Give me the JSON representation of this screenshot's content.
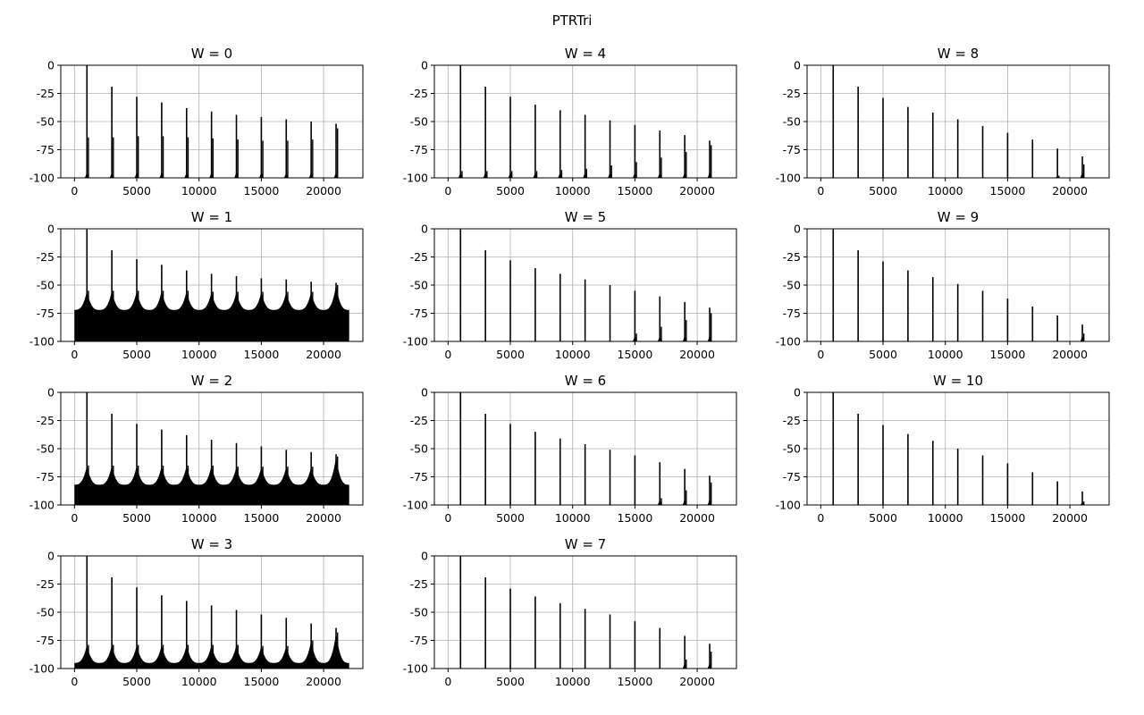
{
  "figure": {
    "suptitle": "PTRTri"
  },
  "chart_data": [
    {
      "type": "bar",
      "title": "W = 0",
      "xlim": [
        -1100,
        23150
      ],
      "ylim": [
        -100,
        0
      ],
      "xticks": [
        0,
        5000,
        10000,
        15000,
        20000
      ],
      "yticks": [
        0,
        -25,
        -50,
        -75,
        -100
      ],
      "grid": true,
      "fundamental": 1000,
      "peaks": [
        0,
        -19,
        -28,
        -33,
        -38,
        -41,
        -44,
        -46,
        -48,
        -50,
        -52
      ],
      "secondary_peaks": [
        -64,
        -64,
        -63,
        -63,
        -64,
        -65,
        -66,
        -67,
        -67,
        -66,
        -56
      ],
      "floor": -100,
      "color": "#000000"
    },
    {
      "type": "bar",
      "title": "W = 1",
      "xlim": [
        -1100,
        23150
      ],
      "ylim": [
        -100,
        0
      ],
      "xticks": [
        0,
        5000,
        10000,
        15000,
        20000
      ],
      "yticks": [
        0,
        -25,
        -50,
        -75,
        -100
      ],
      "grid": true,
      "fundamental": 1000,
      "peaks": [
        0,
        -19,
        -27,
        -32,
        -37,
        -40,
        -42,
        -44,
        -45,
        -47,
        -48
      ],
      "secondary_peaks": [
        -55,
        -55,
        -55,
        -55,
        -55,
        -56,
        -56,
        -56,
        -56,
        -56,
        -50
      ],
      "floor": -72,
      "color": "#000000"
    },
    {
      "type": "bar",
      "title": "W = 2",
      "xlim": [
        -1100,
        23150
      ],
      "ylim": [
        -100,
        0
      ],
      "xticks": [
        0,
        5000,
        10000,
        15000,
        20000
      ],
      "yticks": [
        0,
        -25,
        -50,
        -75,
        -100
      ],
      "grid": true,
      "fundamental": 1000,
      "peaks": [
        0,
        -19,
        -28,
        -33,
        -38,
        -42,
        -45,
        -48,
        -51,
        -53,
        -55
      ],
      "secondary_peaks": [
        -65,
        -65,
        -65,
        -65,
        -65,
        -65,
        -66,
        -66,
        -66,
        -66,
        -57
      ],
      "floor": -82,
      "color": "#000000"
    },
    {
      "type": "bar",
      "title": "W = 3",
      "xlim": [
        -1100,
        23150
      ],
      "ylim": [
        -100,
        0
      ],
      "xticks": [
        0,
        5000,
        10000,
        15000,
        20000
      ],
      "yticks": [
        0,
        -25,
        -50,
        -75,
        -100
      ],
      "grid": true,
      "fundamental": 1000,
      "peaks": [
        0,
        -19,
        -28,
        -35,
        -40,
        -44,
        -48,
        -52,
        -55,
        -60,
        -64
      ],
      "secondary_peaks": [
        -79,
        -79,
        -79,
        -79,
        -79,
        -79,
        -79,
        -80,
        -80,
        -75,
        -68
      ],
      "floor": -95,
      "color": "#000000"
    },
    {
      "type": "bar",
      "title": "W = 4",
      "xlim": [
        -1100,
        23150
      ],
      "ylim": [
        -100,
        0
      ],
      "xticks": [
        0,
        5000,
        10000,
        15000,
        20000
      ],
      "yticks": [
        0,
        -25,
        -50,
        -75,
        -100
      ],
      "grid": true,
      "fundamental": 1000,
      "peaks": [
        0,
        -19,
        -28,
        -35,
        -40,
        -44,
        -49,
        -53,
        -58,
        -62,
        -67
      ],
      "secondary_peaks": [
        -94,
        -94,
        -94,
        -94,
        -93,
        -92,
        -89,
        -86,
        -82,
        -77,
        -71
      ],
      "floor": -100,
      "color": "#000000"
    },
    {
      "type": "bar",
      "title": "W = 5",
      "xlim": [
        -1100,
        23150
      ],
      "ylim": [
        -100,
        0
      ],
      "xticks": [
        0,
        5000,
        10000,
        15000,
        20000
      ],
      "yticks": [
        0,
        -25,
        -50,
        -75,
        -100
      ],
      "grid": true,
      "fundamental": 1000,
      "peaks": [
        0,
        -19,
        -28,
        -35,
        -40,
        -45,
        -50,
        -55,
        -60,
        -65,
        -70
      ],
      "secondary_peaks": [
        -100,
        -100,
        -100,
        -100,
        -100,
        -100,
        -100,
        -93,
        -87,
        -81,
        -75
      ],
      "floor": -100,
      "color": "#000000"
    },
    {
      "type": "bar",
      "title": "W = 6",
      "xlim": [
        -1100,
        23150
      ],
      "ylim": [
        -100,
        0
      ],
      "xticks": [
        0,
        5000,
        10000,
        15000,
        20000
      ],
      "yticks": [
        0,
        -25,
        -50,
        -75,
        -100
      ],
      "grid": true,
      "fundamental": 1000,
      "peaks": [
        0,
        -19,
        -28,
        -35,
        -41,
        -46,
        -51,
        -56,
        -62,
        -68,
        -74
      ],
      "secondary_peaks": [
        -100,
        -100,
        -100,
        -100,
        -100,
        -100,
        -100,
        -100,
        -94,
        -87,
        -80
      ],
      "floor": -100,
      "color": "#000000"
    },
    {
      "type": "bar",
      "title": "W = 7",
      "xlim": [
        -1100,
        23150
      ],
      "ylim": [
        -100,
        0
      ],
      "xticks": [
        0,
        5000,
        10000,
        15000,
        20000
      ],
      "yticks": [
        0,
        -25,
        -50,
        -75,
        -100
      ],
      "grid": true,
      "fundamental": 1000,
      "peaks": [
        0,
        -19,
        -29,
        -36,
        -42,
        -47,
        -52,
        -58,
        -64,
        -71,
        -78
      ],
      "secondary_peaks": [
        -100,
        -100,
        -100,
        -100,
        -100,
        -100,
        -100,
        -100,
        -100,
        -92,
        -85
      ],
      "floor": -100,
      "color": "#000000"
    },
    {
      "type": "bar",
      "title": "W = 8",
      "xlim": [
        -1100,
        23150
      ],
      "ylim": [
        -100,
        0
      ],
      "xticks": [
        0,
        5000,
        10000,
        15000,
        20000
      ],
      "yticks": [
        0,
        -25,
        -50,
        -75,
        -100
      ],
      "grid": true,
      "fundamental": 1000,
      "peaks": [
        0,
        -19,
        -29,
        -37,
        -42,
        -48,
        -54,
        -60,
        -66,
        -74,
        -81
      ],
      "secondary_peaks": [
        -100,
        -100,
        -100,
        -100,
        -100,
        -100,
        -100,
        -100,
        -100,
        -98,
        -88
      ],
      "floor": -100,
      "color": "#000000"
    },
    {
      "type": "bar",
      "title": "W = 9",
      "xlim": [
        -1100,
        23150
      ],
      "ylim": [
        -100,
        0
      ],
      "xticks": [
        0,
        5000,
        10000,
        15000,
        20000
      ],
      "yticks": [
        0,
        -25,
        -50,
        -75,
        -100
      ],
      "grid": true,
      "fundamental": 1000,
      "peaks": [
        0,
        -19,
        -29,
        -37,
        -43,
        -49,
        -55,
        -62,
        -69,
        -77,
        -85
      ],
      "secondary_peaks": [
        -100,
        -100,
        -100,
        -100,
        -100,
        -100,
        -100,
        -100,
        -100,
        -100,
        -93
      ],
      "floor": -100,
      "color": "#000000"
    },
    {
      "type": "bar",
      "title": "W = 10",
      "xlim": [
        -1100,
        23150
      ],
      "ylim": [
        -100,
        0
      ],
      "xticks": [
        0,
        5000,
        10000,
        15000,
        20000
      ],
      "yticks": [
        0,
        -25,
        -50,
        -75,
        -100
      ],
      "grid": true,
      "fundamental": 1000,
      "peaks": [
        0,
        -19,
        -29,
        -37,
        -43,
        -50,
        -56,
        -63,
        -71,
        -79,
        -88
      ],
      "secondary_peaks": [
        -100,
        -100,
        -100,
        -100,
        -100,
        -100,
        -100,
        -100,
        -100,
        -100,
        -97
      ],
      "floor": -100,
      "color": "#000000"
    }
  ]
}
